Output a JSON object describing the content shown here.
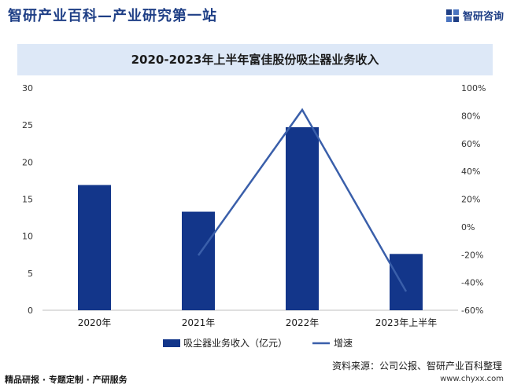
{
  "header": {
    "brand_title": "智研产业百科—产业研究第一站",
    "logo_text": "智研咨询",
    "logo_icon": "zhiyan-logo-icon"
  },
  "colors": {
    "bar": "#13368a",
    "line": "#3a5faa",
    "title_bg": "#dde8f7",
    "accent": "#1f3f86"
  },
  "chart_data": {
    "type": "bar",
    "title": "2020-2023年上半年富佳股份吸尘器业务收入",
    "categories": [
      "2020年",
      "2021年",
      "2022年",
      "2023年上半年"
    ],
    "series": [
      {
        "name": "吸尘器业务收入（亿元）",
        "type": "bar",
        "axis": "left",
        "values": [
          16.9,
          13.3,
          24.7,
          7.6
        ]
      },
      {
        "name": "增速",
        "type": "line",
        "axis": "right",
        "values": [
          null,
          -20.5,
          84.3,
          -46.5
        ]
      }
    ],
    "y_left": {
      "min": 0,
      "max": 30,
      "ticks": [
        "0",
        "5",
        "10",
        "15",
        "20",
        "25",
        "30"
      ]
    },
    "y_right": {
      "min": -60,
      "max": 100,
      "ticks": [
        "-60%",
        "-40%",
        "-20%",
        "0%",
        "20%",
        "40%",
        "60%",
        "80%",
        "100%"
      ]
    },
    "grid": false,
    "legend_position": "bottom"
  },
  "source_text": "资料来源：公司公报、智研产业百科整理",
  "footer": {
    "left_text": "精品研报 · 专题定制 · 产研服务",
    "url": "www.chyxx.com"
  }
}
